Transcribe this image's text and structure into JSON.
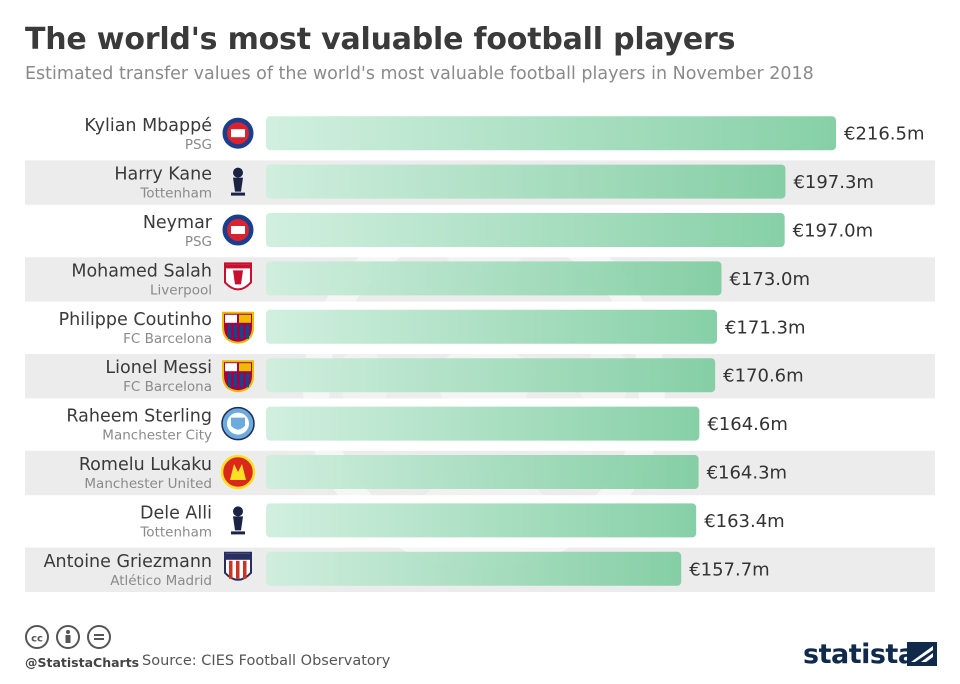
{
  "header": {
    "title": "The world's most valuable football players",
    "subtitle": "Estimated transfer values of the world's most valuable football players in November 2018"
  },
  "chart_data": {
    "type": "bar",
    "orientation": "horizontal",
    "title": "The world's most valuable football players",
    "subtitle": "Estimated transfer values of the world's most valuable football players in November 2018",
    "unit_prefix": "€",
    "unit_suffix": "m",
    "xlim": [
      0,
      216.5
    ],
    "categories": [
      "Kylian Mbappé",
      "Harry Kane",
      "Neymar",
      "Mohamed Salah",
      "Philippe Coutinho",
      "Lionel Messi",
      "Raheem Sterling",
      "Romelu Lukaku",
      "Dele Alli",
      "Antoine Griezmann"
    ],
    "clubs": [
      "PSG",
      "Tottenham",
      "PSG",
      "Liverpool",
      "FC Barcelona",
      "FC Barcelona",
      "Manchester City",
      "Manchester United",
      "Tottenham",
      "Atlético Madrid"
    ],
    "club_icons": [
      "psg-crest-icon",
      "tottenham-crest-icon",
      "psg-crest-icon",
      "liverpool-crest-icon",
      "barcelona-crest-icon",
      "barcelona-crest-icon",
      "man-city-crest-icon",
      "man-united-crest-icon",
      "tottenham-crest-icon",
      "atletico-crest-icon"
    ],
    "values": [
      216.5,
      197.3,
      197.0,
      173.0,
      171.3,
      170.6,
      164.6,
      164.3,
      163.4,
      157.7
    ],
    "value_labels": [
      "€216.5m",
      "€197.3m",
      "€197.0m",
      "€173.0m",
      "€171.3m",
      "€170.6m",
      "€164.6m",
      "€164.3m",
      "€163.4m",
      "€157.7m"
    ],
    "colors": {
      "bar_start": "#cdeedd",
      "bar_end": "#7ccc9f",
      "row_alt": "#ececec"
    }
  },
  "footer": {
    "handle": "@StatistaCharts",
    "source": "Source: CIES Football Observatory",
    "brand": "statista"
  }
}
